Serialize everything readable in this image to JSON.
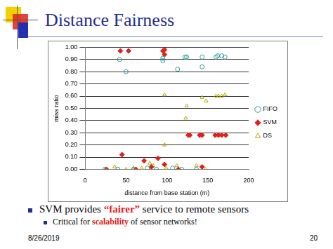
{
  "slide": {
    "title": "Distance Fairness",
    "bullets": [
      {
        "text": "SVM provides “fairer” service to remote sensors",
        "highlight": "“fairer”",
        "level": 1
      },
      {
        "text": "Critical for scalability of sensor networks!",
        "highlight": "scalability",
        "level": 2
      }
    ],
    "date": "8/26/2019",
    "page": 20
  },
  "chart_data": {
    "type": "scatter",
    "x_label": "distance from base station (m)",
    "y_label": "miss ratio",
    "xlim": [
      0,
      200
    ],
    "xticks": [
      0,
      50,
      100,
      150,
      200
    ],
    "ylim": [
      0,
      1
    ],
    "yticks": [
      {
        "value": 0,
        "label": "0.00"
      },
      {
        "value": 0.1,
        "label": "0.10"
      },
      {
        "value": 0.2,
        "label": "0.20"
      },
      {
        "value": 0.3,
        "label": "0.30"
      },
      {
        "value": 0.4,
        "label": "0.40"
      },
      {
        "value": 0.5,
        "label": "0.50"
      },
      {
        "value": 0.6,
        "label": "0.60"
      },
      {
        "value": 0.7,
        "label": "0.70"
      },
      {
        "value": 0.8,
        "label": "0.80"
      },
      {
        "value": 0.9,
        "label": "0.90"
      },
      {
        "value": 1,
        "label": "1.00"
      }
    ],
    "grid": "y",
    "legend": "right",
    "series": [
      {
        "name": "FIFO",
        "color": "#2a9a9a",
        "marker": "open_circle",
        "x": [
          42,
          50,
          95,
          95,
          113,
          122,
          124,
          143,
          143,
          160,
          162,
          167,
          171,
          24,
          40,
          59,
          76,
          87,
          107,
          118,
          136
        ],
        "values": [
          0.9,
          0.8,
          0.91,
          0.89,
          0.82,
          0.92,
          0.92,
          0.92,
          0.84,
          0.92,
          0.93,
          0.93,
          0.92,
          0,
          0,
          0,
          0.01,
          0,
          0.01,
          0,
          0
        ]
      },
      {
        "name": "SVM",
        "color": "#e0201b",
        "marker": "diamond",
        "x": [
          43,
          53,
          95,
          97,
          97,
          45,
          72,
          89,
          97,
          126,
          128,
          140,
          143,
          159,
          163,
          167,
          172,
          26,
          62,
          81,
          114,
          143
        ],
        "values": [
          0.97,
          0.97,
          0.97,
          0.98,
          0.94,
          0.12,
          0.07,
          0.09,
          0.04,
          0.28,
          0.28,
          0.28,
          0.28,
          0.28,
          0.28,
          0.28,
          0.28,
          0,
          0,
          0.02,
          0,
          0.02
        ]
      },
      {
        "name": "DS",
        "color": "#b5a800",
        "marker": "open_triangle",
        "x": [
          97,
          97,
          124,
          123,
          143,
          148,
          160,
          163,
          167,
          171,
          26,
          36,
          50,
          59,
          69,
          79,
          83,
          99,
          112,
          136,
          147
        ],
        "values": [
          0.61,
          0.2,
          0.52,
          0.42,
          0.59,
          0.56,
          0.6,
          0.6,
          0.6,
          0.61,
          0,
          0.02,
          0,
          0.01,
          0.01,
          0.05,
          0.03,
          0.01,
          0.03,
          0.03,
          0
        ]
      }
    ]
  }
}
